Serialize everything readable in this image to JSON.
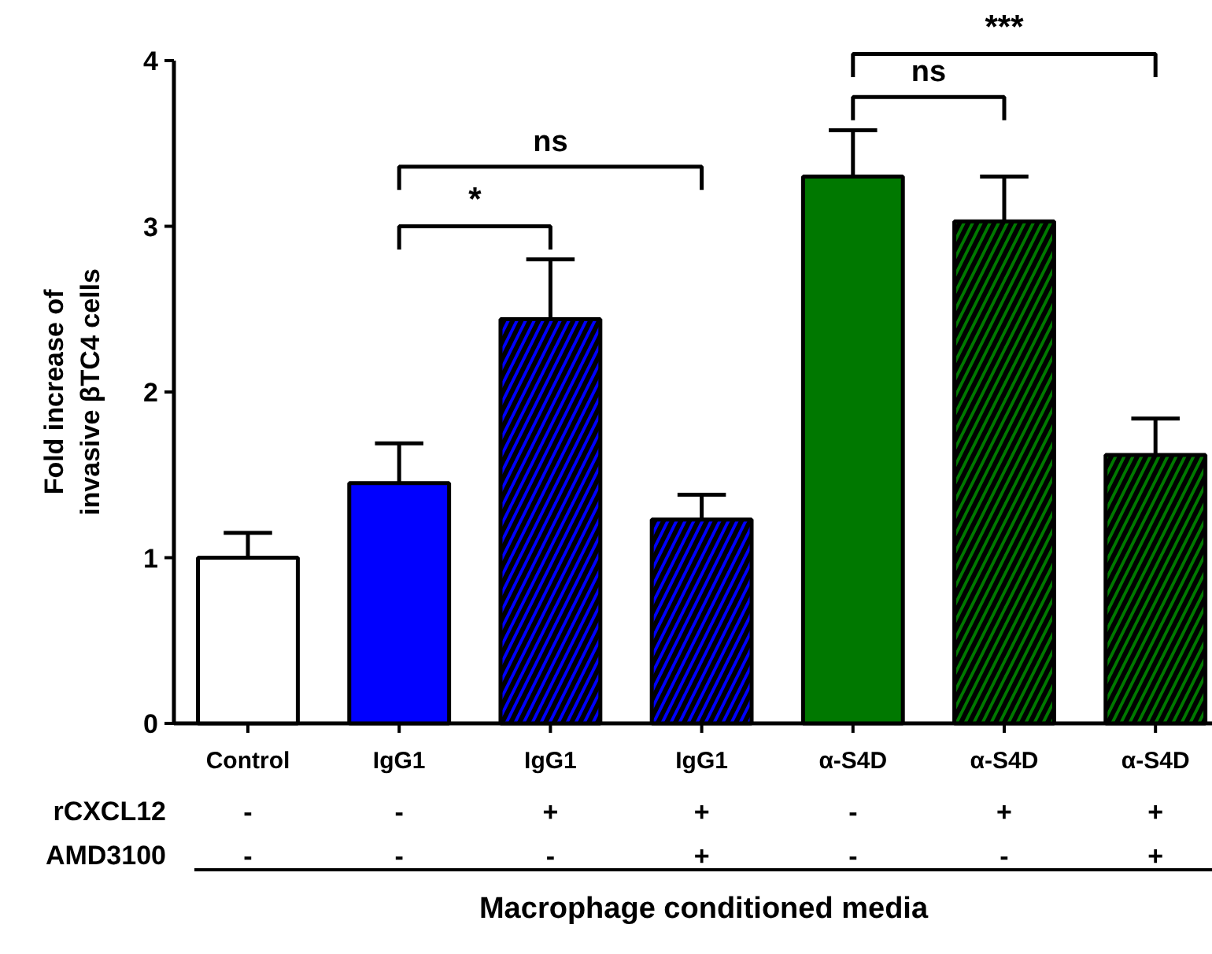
{
  "chart_data": {
    "type": "bar",
    "ylabel": "Fold increase of\ninvasive βTC4 cells",
    "categories": [
      "Control\n-\n-",
      "IgG1\n-\n-",
      "IgG1\n+\n-",
      "IgG1\n+\n+",
      "α-S4D\n-\n-",
      "α-S4D\n+\n-",
      "α-S4D\n+\n+"
    ],
    "series": [
      {
        "colors": [
          "#ffffff",
          "#0000ff",
          null,
          null,
          "#007800",
          null,
          null
        ],
        "values": [
          1.0,
          1.45,
          null,
          null,
          3.3,
          null,
          null
        ],
        "errors": [
          [
            1.0,
            1.15
          ],
          [
            1.45,
            1.69
          ],
          null,
          null,
          [
            3.3,
            3.58
          ],
          null,
          null
        ]
      },
      {
        "colors": [
          null,
          null,
          "#0000ff",
          "#0000ff",
          null,
          "#007800",
          "#007800"
        ],
        "values": [
          null,
          null,
          2.44,
          1.23,
          null,
          3.03,
          1.62
        ],
        "errors": [
          null,
          null,
          [
            2.44,
            2.8
          ],
          [
            1.23,
            1.38
          ],
          null,
          [
            3.03,
            3.3
          ],
          [
            1.62,
            1.84
          ]
        ]
      }
    ],
    "ylim": [
      0,
      4
    ],
    "yticks": [
      0,
      1,
      2,
      3,
      4
    ],
    "grid": false,
    "annotations": [
      "*",
      "ns",
      "ns",
      "***",
      "rCXCL12",
      "AMD3100",
      "Macrophage conditioned media"
    ]
  }
}
